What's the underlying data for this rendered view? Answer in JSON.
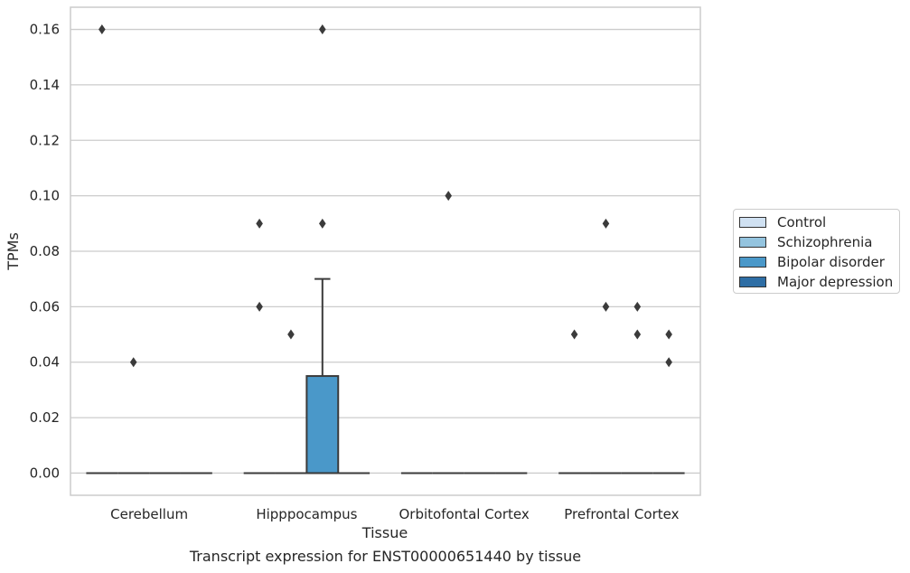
{
  "caption": "Transcript expression for ENST00000651440 by tissue",
  "chart_data": {
    "type": "box",
    "xlabel": "Tissue",
    "ylabel": "TPMs",
    "ylim": [
      -0.008,
      0.168
    ],
    "yticks": [
      "0.00",
      "0.02",
      "0.04",
      "0.06",
      "0.08",
      "0.10",
      "0.12",
      "0.14",
      "0.16"
    ],
    "ytick_values": [
      0,
      0.02,
      0.04,
      0.06,
      0.08,
      0.1,
      0.12,
      0.14,
      0.16
    ],
    "grid": "horizontal",
    "legend_position": "right",
    "categories": [
      "Cerebellum",
      "Hipppocampus",
      "Orbitofontal Cortex",
      "Prefrontal Cortex"
    ],
    "series": [
      {
        "name": "Control",
        "color": "#d0e1f2"
      },
      {
        "name": "Schizophrenia",
        "color": "#94c4df"
      },
      {
        "name": "Bipolar disorder",
        "color": "#4a98c9"
      },
      {
        "name": "Major depression",
        "color": "#2e6ea5"
      }
    ],
    "boxes": [
      {
        "category": 0,
        "series": 0,
        "q1": 0,
        "median": 0,
        "q3": 0,
        "whisker_low": 0,
        "whisker_high": 0,
        "outliers": [
          0.16
        ]
      },
      {
        "category": 0,
        "series": 1,
        "q1": 0,
        "median": 0,
        "q3": 0,
        "whisker_low": 0,
        "whisker_high": 0,
        "outliers": [
          0.04
        ]
      },
      {
        "category": 0,
        "series": 2,
        "q1": 0,
        "median": 0,
        "q3": 0,
        "whisker_low": 0,
        "whisker_high": 0,
        "outliers": []
      },
      {
        "category": 0,
        "series": 3,
        "q1": 0,
        "median": 0,
        "q3": 0,
        "whisker_low": 0,
        "whisker_high": 0,
        "outliers": []
      },
      {
        "category": 1,
        "series": 0,
        "q1": 0,
        "median": 0,
        "q3": 0,
        "whisker_low": 0,
        "whisker_high": 0,
        "outliers": [
          0.09,
          0.06
        ]
      },
      {
        "category": 1,
        "series": 1,
        "q1": 0,
        "median": 0,
        "q3": 0,
        "whisker_low": 0,
        "whisker_high": 0,
        "outliers": [
          0.05
        ]
      },
      {
        "category": 1,
        "series": 2,
        "q1": 0,
        "median": 0,
        "q3": 0.035,
        "whisker_low": 0,
        "whisker_high": 0.07,
        "outliers": [
          0.16,
          0.09
        ]
      },
      {
        "category": 1,
        "series": 3,
        "q1": 0,
        "median": 0,
        "q3": 0,
        "whisker_low": 0,
        "whisker_high": 0,
        "outliers": []
      },
      {
        "category": 2,
        "series": 0,
        "q1": 0,
        "median": 0,
        "q3": 0,
        "whisker_low": 0,
        "whisker_high": 0,
        "outliers": []
      },
      {
        "category": 2,
        "series": 1,
        "q1": 0,
        "median": 0,
        "q3": 0,
        "whisker_low": 0,
        "whisker_high": 0,
        "outliers": [
          0.1
        ]
      },
      {
        "category": 2,
        "series": 2,
        "q1": 0,
        "median": 0,
        "q3": 0,
        "whisker_low": 0,
        "whisker_high": 0,
        "outliers": []
      },
      {
        "category": 2,
        "series": 3,
        "q1": 0,
        "median": 0,
        "q3": 0,
        "whisker_low": 0,
        "whisker_high": 0,
        "outliers": []
      },
      {
        "category": 3,
        "series": 0,
        "q1": 0,
        "median": 0,
        "q3": 0,
        "whisker_low": 0,
        "whisker_high": 0,
        "outliers": [
          0.05
        ]
      },
      {
        "category": 3,
        "series": 1,
        "q1": 0,
        "median": 0,
        "q3": 0,
        "whisker_low": 0,
        "whisker_high": 0,
        "outliers": [
          0.09,
          0.06
        ]
      },
      {
        "category": 3,
        "series": 2,
        "q1": 0,
        "median": 0,
        "q3": 0,
        "whisker_low": 0,
        "whisker_high": 0,
        "outliers": [
          0.06,
          0.05
        ]
      },
      {
        "category": 3,
        "series": 3,
        "q1": 0,
        "median": 0,
        "q3": 0,
        "whisker_low": 0,
        "whisker_high": 0,
        "outliers": [
          0.05,
          0.04
        ]
      }
    ]
  }
}
